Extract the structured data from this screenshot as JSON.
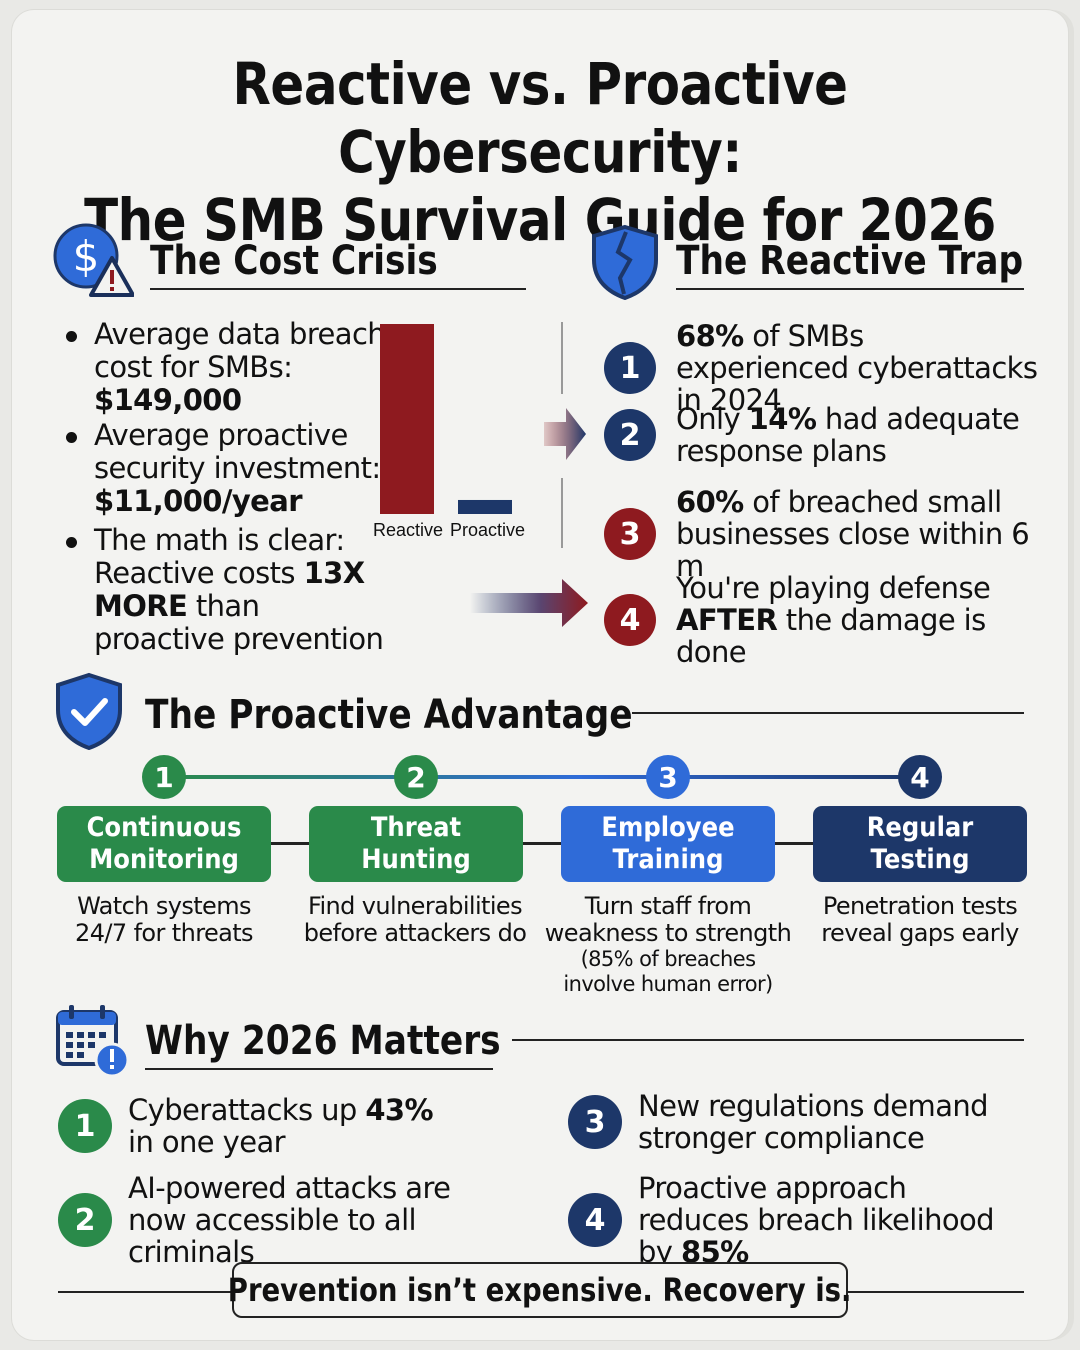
{
  "title": {
    "line1": "Reactive vs. Proactive Cybersecurity:",
    "line2": "The SMB Survival Guide for 2026"
  },
  "cost_crisis": {
    "heading": "The Cost Crisis",
    "icon": "dollar-warning-icon",
    "bullets": [
      {
        "text": "Average data breach cost for SMBs:",
        "bold": "$149,000"
      },
      {
        "text": "Average proactive security investment:",
        "bold": "$11,000/year"
      },
      {
        "pre": "The math is clear: Reactive costs ",
        "bold": "13X MORE",
        "post": " than proactive prevention"
      }
    ]
  },
  "chart_data": {
    "type": "bar",
    "categories": [
      "Reactive",
      "Proactive"
    ],
    "values": [
      149000,
      11000
    ],
    "colors": [
      "#8e1a1f",
      "#1d3769"
    ],
    "title": "",
    "xlabel": "",
    "ylabel": ""
  },
  "reactive_trap": {
    "heading": "The Reactive Trap",
    "icon": "broken-shield-icon",
    "items": [
      {
        "num": "1",
        "color": "navy",
        "bold": "68%",
        "text": " of SMBs experienced cyberattacks in 2024"
      },
      {
        "num": "2",
        "color": "navy",
        "pre": "Only ",
        "bold": "14%",
        "text": " had adequate response plans"
      },
      {
        "num": "3",
        "color": "red",
        "bold": "60%",
        "text": " of breached small businesses close within 6 m"
      },
      {
        "num": "4",
        "color": "red",
        "pre": "You're playing defense ",
        "bold": "AFTER",
        "text": " the damage is done"
      }
    ]
  },
  "proactive": {
    "heading": "The Proactive Advantage",
    "icon": "check-shield-icon",
    "steps": [
      {
        "num": "1",
        "line1": "Continuous",
        "line2": "Monitoring",
        "desc1": "Watch systems",
        "desc2": "24/7 for threats",
        "color": "#2a8a4a"
      },
      {
        "num": "2",
        "line1": "Threat",
        "line2": "Hunting",
        "desc1": "Find vulnerabilities",
        "desc2": "before attackers do",
        "color": "#2a8a4a"
      },
      {
        "num": "3",
        "line1": "Employee",
        "line2": "Training",
        "desc1": "Turn staff from",
        "desc2": "weakness to strength",
        "sub1": "(85% of breaches",
        "sub2": "involve human error)",
        "color": "#2f6bd8"
      },
      {
        "num": "4",
        "line1": "Regular",
        "line2": "Testing",
        "desc1": "Penetration tests",
        "desc2": "reveal gaps early",
        "color": "#1d3769"
      }
    ]
  },
  "why_2026": {
    "heading": "Why 2026 Matters",
    "icon": "calendar-alert-icon",
    "items": [
      {
        "num": "1",
        "pre": "Cyberattacks up ",
        "bold": "43%",
        "post": " in one year"
      },
      {
        "num": "2",
        "pre": "AI-powered attacks are now accessible to all criminals",
        "bold": "",
        "post": ""
      },
      {
        "num": "3",
        "pre": "New regulations demand stronger compliance",
        "bold": "",
        "post": ""
      },
      {
        "num": "4",
        "pre": "Proactive approach reduces breach likelihood by ",
        "bold": "85%",
        "post": ""
      }
    ]
  },
  "footer": "Prevention isn’t expensive. Recovery is."
}
